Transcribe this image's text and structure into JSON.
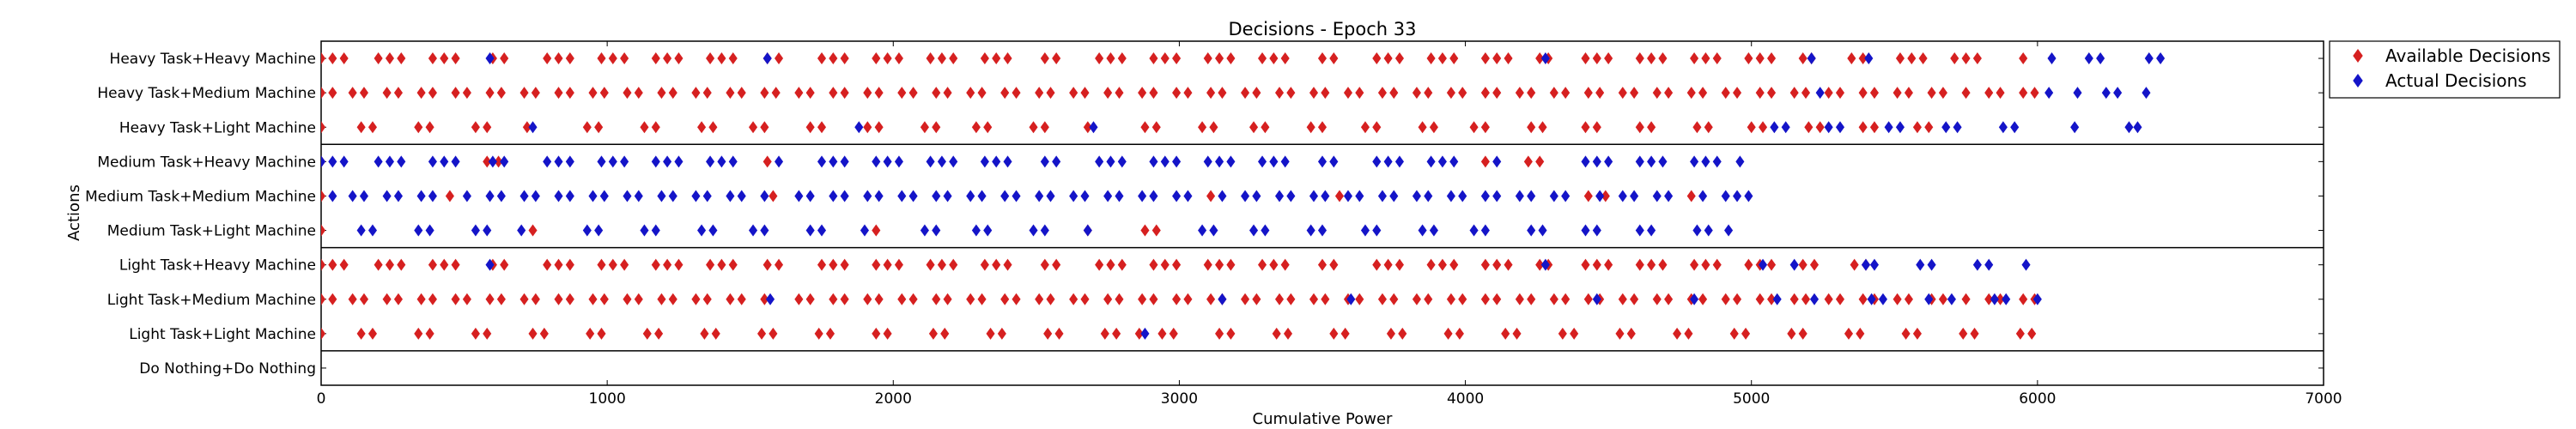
{
  "chart_data": {
    "type": "scatter",
    "title": "Decisions - Epoch 33",
    "xlabel": "Cumulative Power",
    "ylabel": "Actions",
    "xlim": [
      0,
      7000
    ],
    "xticks": [
      0,
      1000,
      2000,
      3000,
      4000,
      5000,
      6000,
      7000
    ],
    "categories": [
      "Heavy Task+Heavy Machine",
      "Heavy Task+Medium Machine",
      "Heavy Task+Light Machine",
      "Medium Task+Heavy Machine",
      "Medium Task+Medium Machine",
      "Medium Task+Light Machine",
      "Light Task+Heavy Machine",
      "Light Task+Medium Machine",
      "Light Task+Light Machine",
      "Do Nothing+Do Nothing"
    ],
    "group_separators_after": [
      "Heavy Task+Light Machine",
      "Medium Task+Light Machine",
      "Light Task+Light Machine"
    ],
    "legend": {
      "position": "outside-right-top",
      "entries": [
        "Available Decisions",
        "Actual Decisions"
      ]
    },
    "colors": {
      "available": "#d62020",
      "actual": "#1414c8"
    },
    "series": [
      {
        "name": "Available Decisions",
        "points": [
          {
            "action": "Heavy Task+Heavy Machine",
            "x": [
              0,
              40,
              80,
              200,
              240,
              280,
              390,
              430,
              470,
              600,
              640,
              790,
              830,
              870,
              980,
              1020,
              1060,
              1170,
              1210,
              1250,
              1360,
              1400,
              1440,
              1560,
              1600,
              1750,
              1790,
              1830,
              1940,
              1980,
              2020,
              2130,
              2170,
              2210,
              2320,
              2360,
              2400,
              2530,
              2570,
              2720,
              2760,
              2800,
              2910,
              2950,
              2990,
              3100,
              3140,
              3180,
              3290,
              3330,
              3370,
              3500,
              3540,
              3690,
              3730,
              3770,
              3880,
              3920,
              3960,
              4070,
              4110,
              4150,
              4260,
              4290,
              4420,
              4460,
              4500,
              4610,
              4650,
              4690,
              4800,
              4840,
              4880,
              4990,
              5030,
              5070,
              5180,
              5210,
              5350,
              5390,
              5520,
              5560,
              5600,
              5710,
              5750,
              5790,
              5950
            ]
          },
          {
            "action": "Heavy Task+Medium Machine",
            "x": [
              0,
              40,
              110,
              150,
              230,
              270,
              350,
              390,
              470,
              510,
              590,
              630,
              710,
              750,
              830,
              870,
              950,
              990,
              1070,
              1110,
              1190,
              1230,
              1310,
              1350,
              1430,
              1470,
              1550,
              1590,
              1670,
              1710,
              1790,
              1830,
              1910,
              1950,
              2030,
              2070,
              2150,
              2190,
              2270,
              2310,
              2390,
              2430,
              2510,
              2550,
              2630,
              2670,
              2750,
              2790,
              2870,
              2910,
              2990,
              3030,
              3110,
              3150,
              3230,
              3270,
              3350,
              3390,
              3470,
              3510,
              3590,
              3630,
              3710,
              3750,
              3830,
              3870,
              3950,
              3990,
              4070,
              4110,
              4190,
              4230,
              4310,
              4350,
              4430,
              4470,
              4550,
              4590,
              4670,
              4710,
              4790,
              4830,
              4910,
              4950,
              5030,
              5070,
              5150,
              5190,
              5270,
              5310,
              5390,
              5430,
              5510,
              5550,
              5630,
              5670,
              5750,
              5830,
              5870,
              5950,
              5990
            ]
          },
          {
            "action": "Heavy Task+Light Machine",
            "x": [
              0,
              140,
              180,
              340,
              380,
              540,
              580,
              720,
              930,
              970,
              1130,
              1170,
              1330,
              1370,
              1510,
              1550,
              1710,
              1750,
              1910,
              1950,
              2110,
              2150,
              2290,
              2330,
              2490,
              2530,
              2680,
              2880,
              2920,
              3080,
              3120,
              3260,
              3300,
              3460,
              3500,
              3650,
              3690,
              3850,
              3890,
              4030,
              4070,
              4230,
              4270,
              4420,
              4460,
              4610,
              4650,
              4810,
              4850,
              5000,
              5040,
              5200,
              5240,
              5390,
              5430,
              5580,
              5620
            ]
          },
          {
            "action": "Medium Task+Heavy Machine",
            "x": [
              0,
              580,
              620,
              1560,
              4070,
              4220,
              4260
            ]
          },
          {
            "action": "Medium Task+Medium Machine",
            "x": [
              0,
              450,
              1580,
              3110,
              3560,
              4430,
              4490,
              4790
            ]
          },
          {
            "action": "Medium Task+Light Machine",
            "x": [
              0,
              740,
              1940,
              2680,
              2880,
              2920
            ]
          },
          {
            "action": "Light Task+Heavy Machine",
            "x": [
              0,
              40,
              80,
              200,
              240,
              280,
              390,
              430,
              470,
              600,
              640,
              790,
              830,
              870,
              980,
              1020,
              1060,
              1170,
              1210,
              1250,
              1360,
              1400,
              1440,
              1560,
              1600,
              1750,
              1790,
              1830,
              1940,
              1980,
              2020,
              2130,
              2170,
              2210,
              2320,
              2360,
              2400,
              2530,
              2570,
              2720,
              2760,
              2800,
              2910,
              2950,
              2990,
              3100,
              3140,
              3180,
              3290,
              3330,
              3370,
              3500,
              3540,
              3690,
              3730,
              3770,
              3880,
              3920,
              3960,
              4070,
              4110,
              4150,
              4260,
              4290,
              4420,
              4460,
              4500,
              4610,
              4650,
              4690,
              4800,
              4840,
              4880,
              4990,
              5030,
              5070,
              5180,
              5220,
              5360,
              5400
            ]
          },
          {
            "action": "Light Task+Medium Machine",
            "x": [
              0,
              40,
              110,
              150,
              230,
              270,
              350,
              390,
              470,
              510,
              590,
              630,
              710,
              750,
              830,
              870,
              950,
              990,
              1070,
              1110,
              1190,
              1230,
              1310,
              1350,
              1430,
              1470,
              1550,
              1670,
              1710,
              1790,
              1830,
              1910,
              1950,
              2030,
              2070,
              2150,
              2190,
              2270,
              2310,
              2390,
              2430,
              2510,
              2550,
              2630,
              2670,
              2750,
              2790,
              2870,
              2910,
              2990,
              3030,
              3110,
              3150,
              3230,
              3270,
              3350,
              3390,
              3470,
              3510,
              3590,
              3630,
              3710,
              3750,
              3830,
              3870,
              3950,
              3990,
              4070,
              4110,
              4190,
              4230,
              4310,
              4350,
              4430,
              4470,
              4550,
              4590,
              4670,
              4710,
              4790,
              4830,
              4910,
              4950,
              5030,
              5070,
              5150,
              5190,
              5270,
              5310,
              5390,
              5430,
              5510,
              5550,
              5630,
              5670,
              5750,
              5830,
              5870,
              5950,
              5990
            ]
          },
          {
            "action": "Light Task+Light Machine",
            "x": [
              0,
              140,
              180,
              340,
              380,
              540,
              580,
              740,
              780,
              940,
              980,
              1140,
              1180,
              1340,
              1380,
              1540,
              1580,
              1740,
              1780,
              1940,
              1980,
              2140,
              2180,
              2340,
              2380,
              2540,
              2580,
              2740,
              2780,
              2860,
              2940,
              2980,
              3140,
              3180,
              3340,
              3380,
              3540,
              3580,
              3740,
              3780,
              3940,
              3980,
              4140,
              4180,
              4340,
              4380,
              4540,
              4580,
              4740,
              4780,
              4940,
              4980,
              5140,
              5180,
              5340,
              5380,
              5540,
              5580,
              5740,
              5780,
              5940,
              5980
            ]
          }
        ]
      },
      {
        "name": "Actual Decisions",
        "points": [
          {
            "action": "Heavy Task+Heavy Machine",
            "x": [
              590,
              1560,
              4280,
              5210,
              5410,
              6050,
              6180,
              6220,
              6390,
              6430
            ]
          },
          {
            "action": "Heavy Task+Medium Machine",
            "x": [
              5240,
              6040,
              6140,
              6240,
              6280,
              6380
            ]
          },
          {
            "action": "Heavy Task+Light Machine",
            "x": [
              740,
              1880,
              2700,
              5080,
              5120,
              5270,
              5310,
              5480,
              5520,
              5680,
              5720,
              5880,
              5920,
              6130,
              6320,
              6350
            ]
          },
          {
            "action": "Medium Task+Heavy Machine",
            "x": [
              0,
              40,
              80,
              200,
              240,
              280,
              390,
              430,
              470,
              600,
              640,
              790,
              830,
              870,
              980,
              1020,
              1060,
              1170,
              1210,
              1250,
              1360,
              1400,
              1440,
              1600,
              1750,
              1790,
              1830,
              1940,
              1980,
              2020,
              2130,
              2170,
              2210,
              2320,
              2360,
              2400,
              2530,
              2570,
              2720,
              2760,
              2800,
              2910,
              2950,
              2990,
              3100,
              3140,
              3180,
              3290,
              3330,
              3370,
              3500,
              3540,
              3690,
              3730,
              3770,
              3880,
              3920,
              3960,
              4110,
              4420,
              4460,
              4500,
              4610,
              4650,
              4690,
              4800,
              4840,
              4880,
              4960
            ]
          },
          {
            "action": "Medium Task+Medium Machine",
            "x": [
              40,
              110,
              150,
              230,
              270,
              350,
              390,
              510,
              590,
              630,
              710,
              750,
              830,
              870,
              950,
              990,
              1070,
              1110,
              1190,
              1230,
              1310,
              1350,
              1430,
              1470,
              1550,
              1670,
              1710,
              1790,
              1830,
              1910,
              1950,
              2030,
              2070,
              2150,
              2190,
              2270,
              2310,
              2390,
              2430,
              2510,
              2550,
              2630,
              2670,
              2750,
              2790,
              2870,
              2910,
              2990,
              3030,
              3150,
              3230,
              3270,
              3350,
              3390,
              3470,
              3510,
              3590,
              3630,
              3710,
              3750,
              3830,
              3870,
              3950,
              3990,
              4070,
              4110,
              4190,
              4230,
              4310,
              4350,
              4470,
              4550,
              4590,
              4670,
              4710,
              4830,
              4910,
              4950,
              4990
            ]
          },
          {
            "action": "Medium Task+Light Machine",
            "x": [
              140,
              180,
              340,
              380,
              540,
              580,
              700,
              930,
              970,
              1130,
              1170,
              1330,
              1370,
              1510,
              1550,
              1710,
              1750,
              1900,
              2110,
              2150,
              2290,
              2330,
              2490,
              2530,
              2680,
              3080,
              3120,
              3260,
              3300,
              3460,
              3500,
              3650,
              3690,
              3850,
              3890,
              4030,
              4070,
              4230,
              4270,
              4420,
              4460,
              4610,
              4650,
              4810,
              4850,
              4920
            ]
          },
          {
            "action": "Light Task+Heavy Machine",
            "x": [
              590,
              4280,
              5040,
              5150,
              5400,
              5430,
              5590,
              5630,
              5790,
              5830,
              5960
            ]
          },
          {
            "action": "Light Task+Medium Machine",
            "x": [
              1570,
              3150,
              3600,
              4460,
              4800,
              5090,
              5220,
              5420,
              5460,
              5620,
              5700,
              5850,
              5890,
              6000
            ]
          },
          {
            "action": "Light Task+Light Machine",
            "x": [
              2880
            ]
          }
        ]
      }
    ]
  }
}
